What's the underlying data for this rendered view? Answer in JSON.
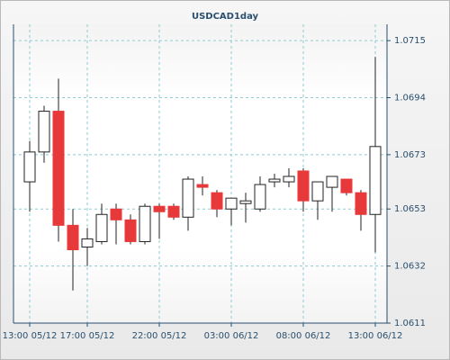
{
  "chart_data": {
    "type": "candlestick",
    "title": "USDCAD1day",
    "categories": [
      "13:00 05/12",
      null,
      null,
      null,
      "17:00 05/12",
      null,
      null,
      null,
      null,
      "22:00 05/12",
      null,
      null,
      null,
      null,
      "03:00 06/12",
      null,
      null,
      null,
      null,
      "08:00 06/12",
      null,
      null,
      null,
      null,
      "13:00 06/12"
    ],
    "open": [
      1.0663,
      1.0674,
      1.0689,
      1.0647,
      1.0639,
      1.0641,
      1.0653,
      1.0649,
      1.0641,
      1.0654,
      1.0654,
      1.065,
      1.0662,
      1.0659,
      1.0653,
      1.0655,
      1.0653,
      1.0663,
      1.0663,
      1.0667,
      1.0656,
      1.0661,
      1.0664,
      1.0659,
      1.0651
    ],
    "high": [
      1.0678,
      1.0691,
      1.0701,
      1.0653,
      1.0646,
      1.0655,
      1.0655,
      1.0651,
      1.0655,
      1.0655,
      1.0655,
      1.0665,
      1.0665,
      1.066,
      1.0657,
      1.0659,
      1.0665,
      1.0666,
      1.0668,
      1.0668,
      1.0663,
      1.0665,
      1.0664,
      1.066,
      1.0709
    ],
    "low": [
      1.0652,
      1.067,
      1.0641,
      1.0623,
      1.0632,
      1.064,
      1.064,
      1.064,
      1.064,
      1.0642,
      1.0649,
      1.0645,
      1.0658,
      1.065,
      1.0647,
      1.0648,
      1.0652,
      1.0661,
      1.0661,
      1.0652,
      1.0649,
      1.0652,
      1.0658,
      1.0645,
      1.0637
    ],
    "close": [
      1.0674,
      1.0689,
      1.0647,
      1.0638,
      1.0642,
      1.0651,
      1.0649,
      1.0641,
      1.0654,
      1.0652,
      1.065,
      1.0664,
      1.0661,
      1.0653,
      1.0657,
      1.0656,
      1.0662,
      1.0664,
      1.0665,
      1.0656,
      1.0663,
      1.0665,
      1.0659,
      1.0651,
      1.0676
    ],
    "up_color": "#ffffff",
    "down_color": "#e8393a",
    "ylim": [
      1.0611,
      1.0721
    ],
    "yticks": [
      1.0611,
      1.0632,
      1.0653,
      1.0673,
      1.0694,
      1.0715
    ],
    "grid": true
  }
}
